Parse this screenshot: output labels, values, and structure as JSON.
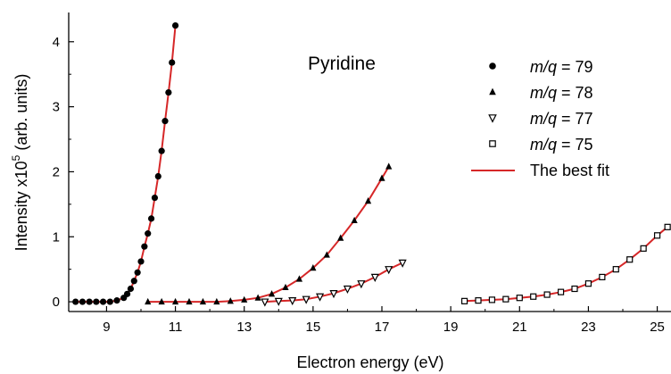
{
  "chart_data": {
    "type": "scatter",
    "xlabel": "Electron energy (eV)",
    "ylabel_main": "Intensity x10",
    "ylabel_exp": "5",
    "ylabel_unit": " (arb. units)",
    "annotation": "Pyridine",
    "xlim": [
      7.9,
      25.4
    ],
    "ylim": [
      -0.15,
      4.45
    ],
    "x_ticks": [
      9,
      11,
      13,
      15,
      17,
      19,
      21,
      23,
      25
    ],
    "y_ticks": [
      0,
      1,
      2,
      3,
      4
    ],
    "grid": false,
    "legend_position": "top-right",
    "fit_color": "#d62728",
    "marker_color": "#000000",
    "series": [
      {
        "name_italic": "m/q",
        "name_rest": " = 79",
        "marker": "circle",
        "x": [
          8.1,
          8.3,
          8.5,
          8.7,
          8.9,
          9.1,
          9.3,
          9.5,
          9.6,
          9.7,
          9.8,
          9.9,
          10.0,
          10.1,
          10.2,
          10.3,
          10.4,
          10.5,
          10.6,
          10.7,
          10.8,
          10.9,
          11.0
        ],
        "y": [
          0.0,
          0.0,
          0.0,
          0.0,
          0.0,
          0.0,
          0.02,
          0.06,
          0.12,
          0.2,
          0.32,
          0.45,
          0.62,
          0.85,
          1.05,
          1.28,
          1.6,
          1.93,
          2.32,
          2.78,
          3.22,
          3.68,
          4.25
        ]
      },
      {
        "name_italic": "m/q",
        "name_rest": " = 78",
        "marker": "triangle-up",
        "x": [
          10.2,
          10.6,
          11.0,
          11.4,
          11.8,
          12.2,
          12.6,
          13.0,
          13.4,
          13.8,
          14.2,
          14.6,
          15.0,
          15.4,
          15.8,
          16.2,
          16.6,
          17.0,
          17.2
        ],
        "y": [
          0.0,
          0.0,
          0.0,
          0.0,
          0.0,
          0.0,
          0.01,
          0.03,
          0.06,
          0.12,
          0.22,
          0.35,
          0.52,
          0.72,
          0.98,
          1.25,
          1.55,
          1.9,
          2.08
        ]
      },
      {
        "name_italic": "m/q",
        "name_rest": " = 77",
        "marker": "triangle-down",
        "x": [
          13.6,
          14.0,
          14.4,
          14.8,
          15.2,
          15.6,
          16.0,
          16.4,
          16.8,
          17.2,
          17.6
        ],
        "y": [
          0.0,
          0.01,
          0.02,
          0.04,
          0.08,
          0.13,
          0.2,
          0.28,
          0.38,
          0.5,
          0.6
        ]
      },
      {
        "name_italic": "m/q",
        "name_rest": " = 75",
        "marker": "square",
        "x": [
          19.4,
          19.8,
          20.2,
          20.6,
          21.0,
          21.4,
          21.8,
          22.2,
          22.6,
          23.0,
          23.4,
          23.8,
          24.2,
          24.6,
          25.0,
          25.3
        ],
        "y": [
          0.01,
          0.02,
          0.03,
          0.04,
          0.06,
          0.08,
          0.11,
          0.15,
          0.2,
          0.28,
          0.38,
          0.5,
          0.65,
          0.82,
          1.02,
          1.15
        ]
      }
    ],
    "fit_legend_label": "The best fit"
  }
}
